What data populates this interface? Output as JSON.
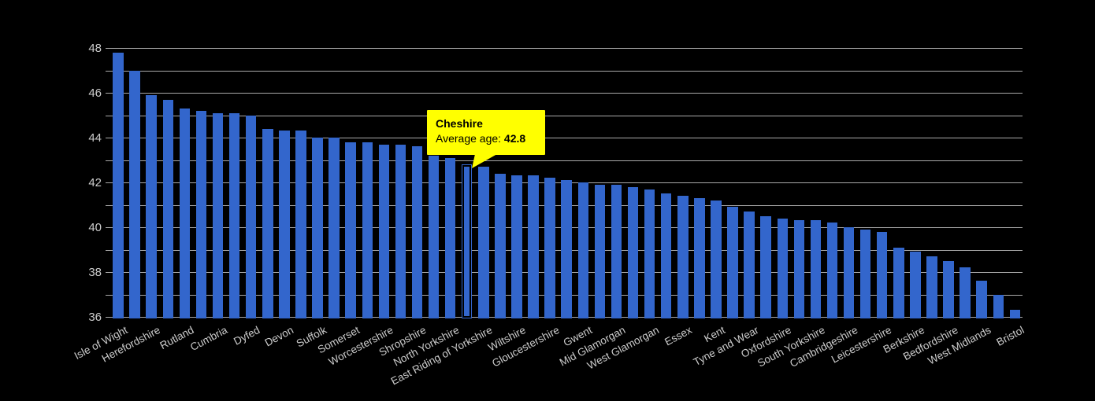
{
  "chart_data": {
    "type": "bar",
    "orientation": "vertical",
    "grid": "on",
    "legend": "none",
    "ylim": [
      36,
      48
    ],
    "y_major_tick_labels": [
      "48",
      "46",
      "44",
      "42",
      "40",
      "38",
      "36"
    ],
    "y_minor_tick_step": 1,
    "categories": [
      "Isle of Wight",
      "",
      "Herefordshire",
      "",
      "Rutland",
      "",
      "Cumbria",
      "",
      "Dyfed",
      "",
      "Devon",
      "",
      "Suffolk",
      "",
      "Somerset",
      "",
      "Worcestershire",
      "",
      "Shropshire",
      "",
      "North Yorkshire",
      "",
      "East Riding of Yorkshire",
      "",
      "Wiltshire",
      "",
      "Gloucestershire",
      "",
      "Gwent",
      "",
      "Mid Glamorgan",
      "",
      "West Glamorgan",
      "",
      "Essex",
      "",
      "Kent",
      "",
      "Tyne and Wear",
      "",
      "Oxfordshire",
      "",
      "South Yorkshire",
      "",
      "Cambridgeshire",
      "",
      "Leicestershire",
      "",
      "Berkshire",
      "",
      "Bedfordshire",
      "",
      "West Midlands",
      "",
      "Bristol"
    ],
    "values": [
      47.8,
      47.0,
      45.9,
      45.7,
      45.3,
      45.2,
      45.1,
      45.1,
      45.0,
      44.4,
      44.3,
      44.3,
      44.0,
      44.0,
      43.8,
      43.8,
      43.7,
      43.7,
      43.6,
      43.2,
      43.1,
      42.8,
      42.7,
      42.4,
      42.3,
      42.3,
      42.2,
      42.1,
      42.0,
      41.9,
      41.9,
      41.8,
      41.7,
      41.5,
      41.4,
      41.3,
      41.2,
      40.9,
      40.7,
      40.5,
      40.4,
      40.3,
      40.3,
      40.2,
      40.0,
      39.9,
      39.8,
      39.1,
      38.9,
      38.7,
      38.5,
      38.2,
      37.6,
      37.0,
      36.3
    ],
    "highlighted_bar": {
      "index": 21,
      "name": "Cheshire",
      "value": 42.8
    },
    "colors": {
      "bar": "#3366cc",
      "background": "#000000",
      "gridline": "#aaaaaa",
      "axis_text": "#cccccc",
      "tooltip_bg": "#ffff00",
      "tooltip_text": "#000000",
      "highlight_outline": "#000000"
    }
  },
  "tooltip": {
    "title": "Cheshire",
    "label": "Average age:",
    "value": "42.8"
  }
}
